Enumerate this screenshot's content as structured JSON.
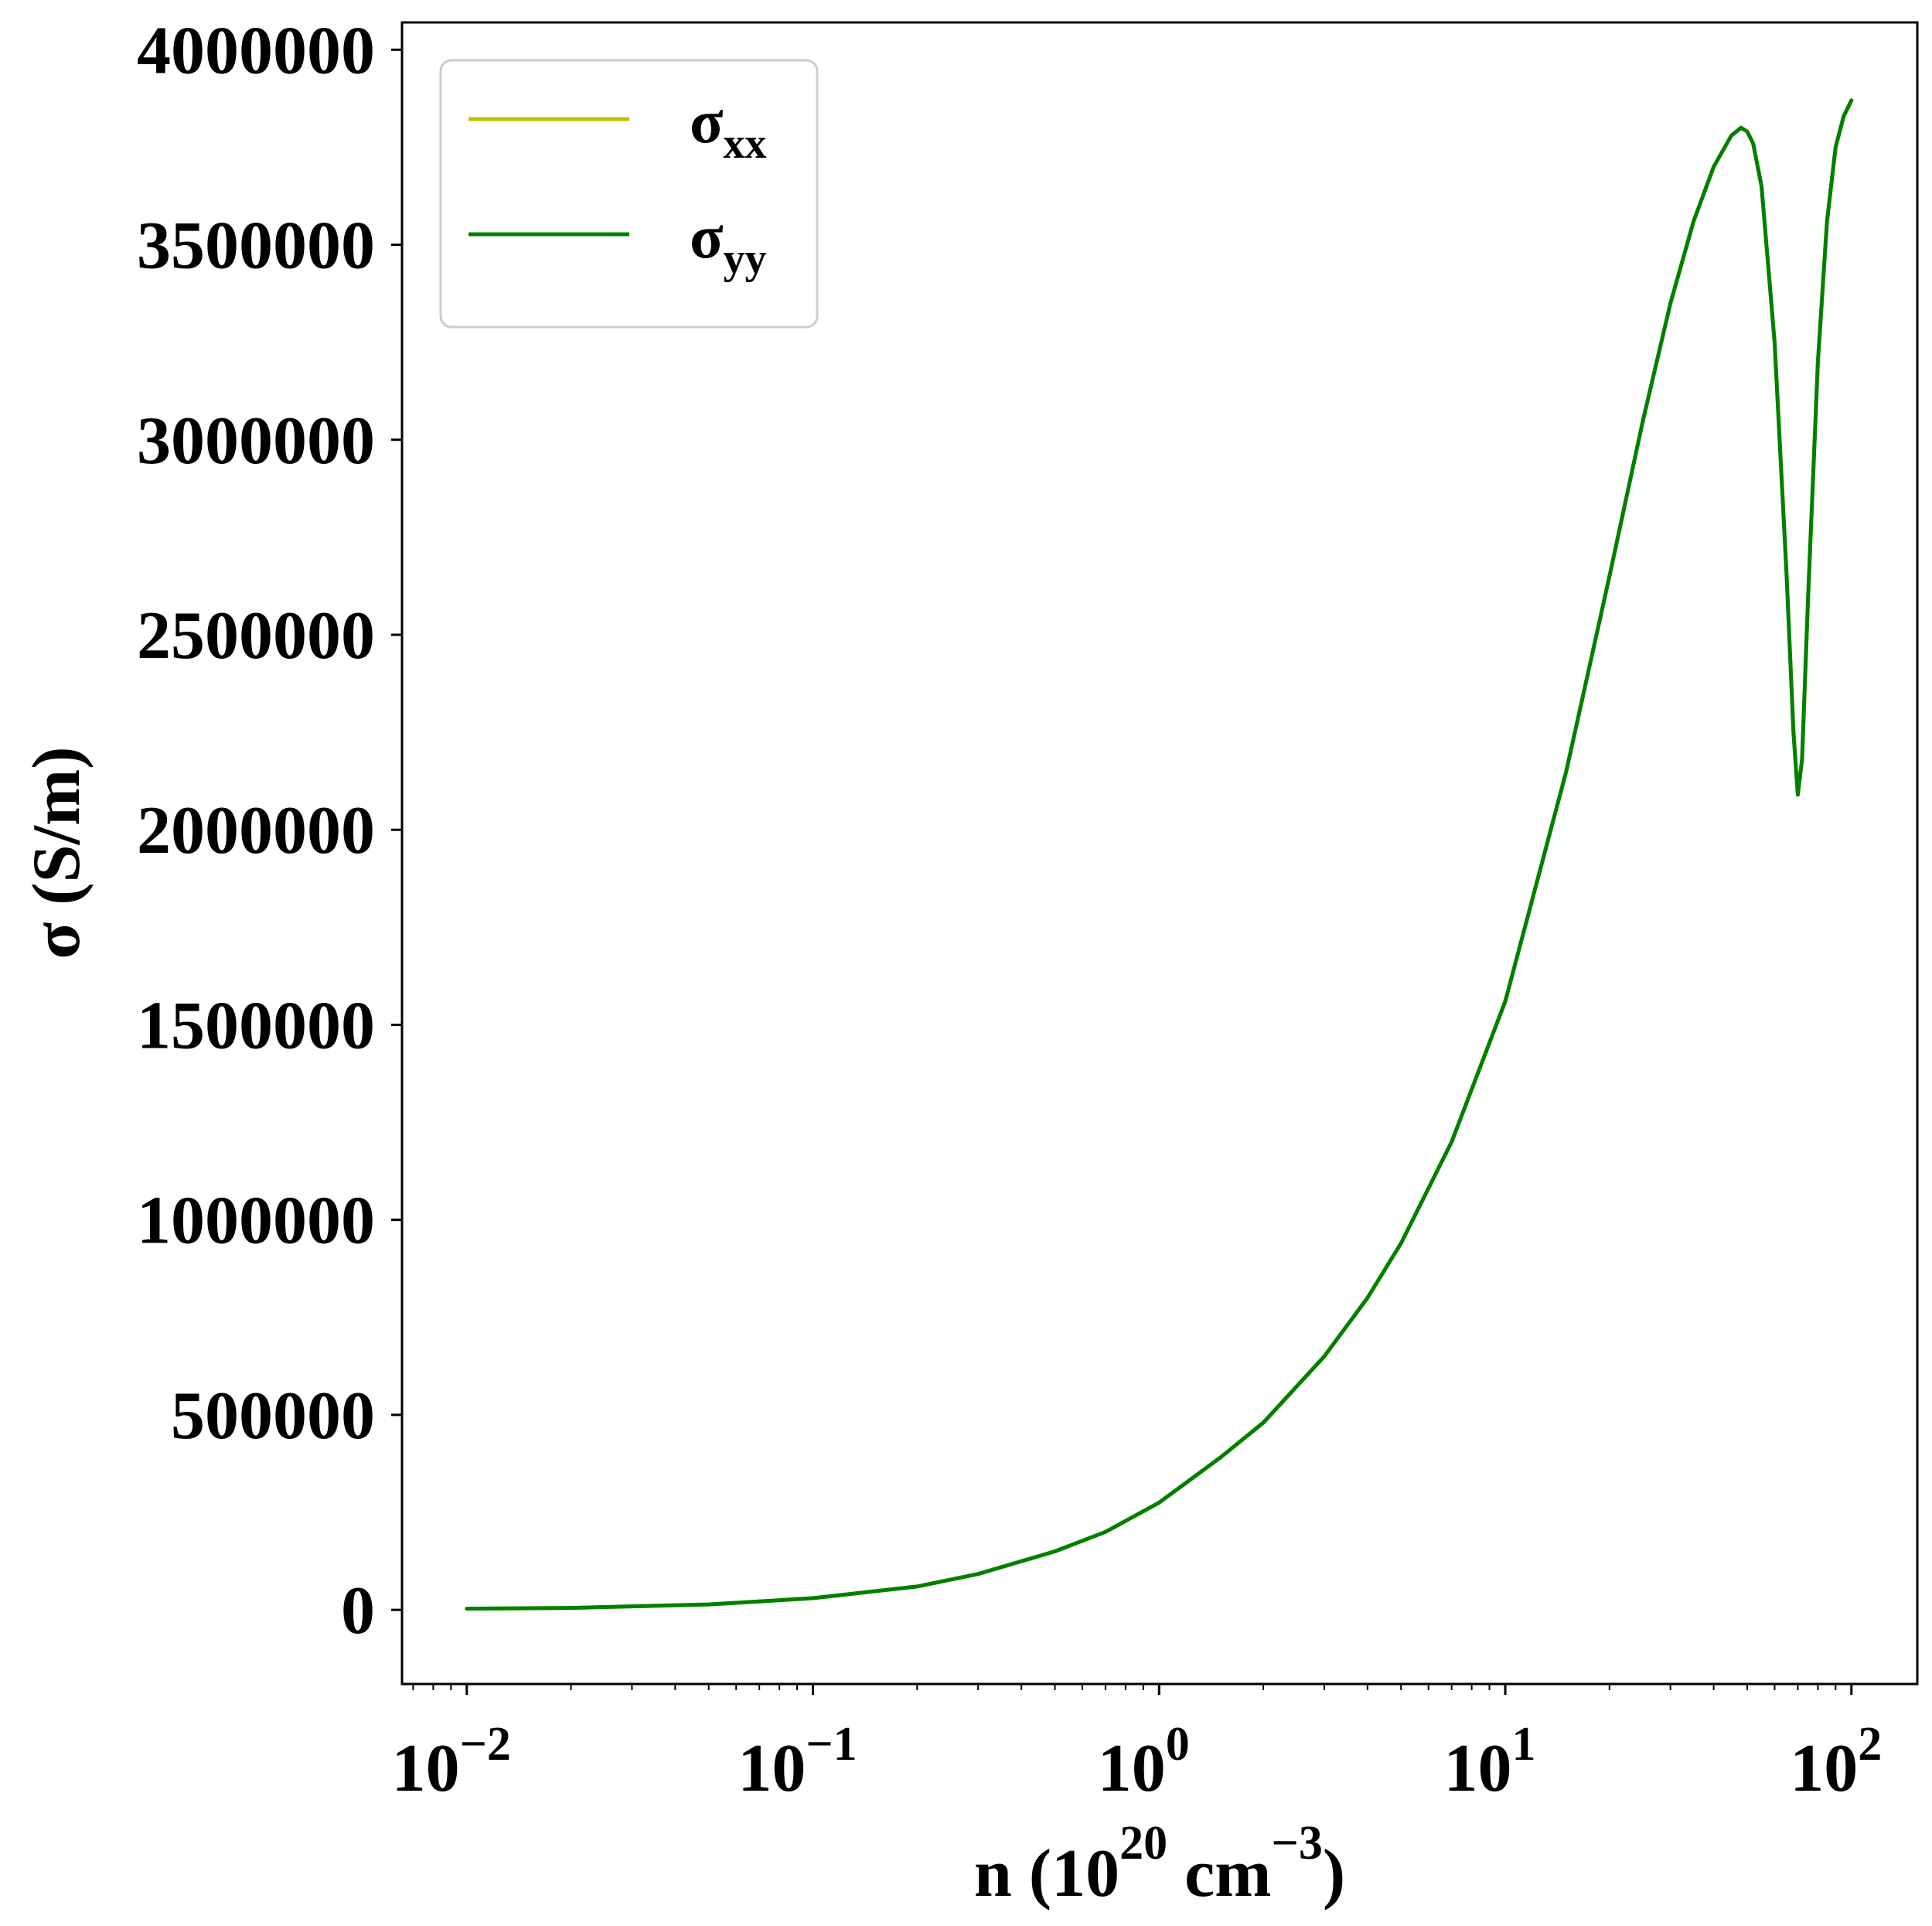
{
  "chart_data": {
    "type": "line",
    "xscale": "log",
    "xlabel": {
      "base": "n (10",
      "sup1": "20",
      "mid": " cm",
      "sup2": "−3",
      "end": ")"
    },
    "ylabel": "σ (S/m)",
    "xlim": [
      0.0065,
      155
    ],
    "ylim": [
      -190000,
      4070000
    ],
    "x_ticks": [
      {
        "value": 0.01,
        "base": "10",
        "exp": "−2"
      },
      {
        "value": 0.1,
        "base": "10",
        "exp": "−1"
      },
      {
        "value": 1,
        "base": "10",
        "exp": "0"
      },
      {
        "value": 10,
        "base": "10",
        "exp": "1"
      },
      {
        "value": 100,
        "base": "10",
        "exp": "2"
      }
    ],
    "y_ticks": [
      {
        "value": 0,
        "label": "0"
      },
      {
        "value": 500000,
        "label": "500000"
      },
      {
        "value": 1000000,
        "label": "1000000"
      },
      {
        "value": 1500000,
        "label": "1500000"
      },
      {
        "value": 2000000,
        "label": "2000000"
      },
      {
        "value": 2500000,
        "label": "2500000"
      },
      {
        "value": 3000000,
        "label": "3000000"
      },
      {
        "value": 3500000,
        "label": "3500000"
      },
      {
        "value": 4000000,
        "label": "4000000"
      }
    ],
    "legend": {
      "position": "top-left"
    },
    "grid": false,
    "series": [
      {
        "name": "σxx",
        "name_main": "σ",
        "name_sub": "xx",
        "color": "#bfbf00",
        "x": [
          0.01,
          0.02,
          0.05,
          0.1,
          0.2,
          0.3,
          0.5,
          0.7,
          1.0,
          1.5,
          2.0,
          3.0,
          4.0,
          5.0,
          7.0,
          10.0,
          15.0,
          20.0,
          25.0,
          30.0,
          35.0,
          40.0,
          45.0,
          48.0,
          50.0,
          52.0,
          55.0,
          60.0,
          65.0,
          68.0,
          70.0,
          72.0,
          75.0,
          80.0,
          85.0,
          90.0,
          95.0,
          100.0
        ],
        "y": [
          3000,
          5000,
          14000,
          30000,
          60000,
          92000,
          150000,
          200000,
          275000,
          390000,
          480000,
          650000,
          800000,
          940000,
          1200000,
          1560000,
          2150000,
          2650000,
          3050000,
          3350000,
          3560000,
          3700000,
          3780000,
          3800000,
          3790000,
          3760000,
          3650000,
          3250000,
          2650000,
          2250000,
          2090000,
          2180000,
          2600000,
          3200000,
          3560000,
          3750000,
          3830000,
          3870000
        ]
      },
      {
        "name": "σyy",
        "name_main": "σ",
        "name_sub": "yy",
        "color": "#008000",
        "x": [
          0.01,
          0.02,
          0.05,
          0.1,
          0.2,
          0.3,
          0.5,
          0.7,
          1.0,
          1.5,
          2.0,
          3.0,
          4.0,
          5.0,
          7.0,
          10.0,
          15.0,
          20.0,
          25.0,
          30.0,
          35.0,
          40.0,
          45.0,
          48.0,
          50.0,
          52.0,
          55.0,
          60.0,
          65.0,
          68.0,
          70.0,
          72.0,
          75.0,
          80.0,
          85.0,
          90.0,
          95.0,
          100.0
        ],
        "y": [
          3000,
          5000,
          14000,
          30000,
          60000,
          92000,
          150000,
          200000,
          275000,
          390000,
          480000,
          650000,
          800000,
          940000,
          1200000,
          1560000,
          2150000,
          2650000,
          3050000,
          3350000,
          3560000,
          3700000,
          3780000,
          3800000,
          3790000,
          3760000,
          3650000,
          3250000,
          2650000,
          2250000,
          2090000,
          2180000,
          2600000,
          3200000,
          3560000,
          3750000,
          3830000,
          3870000
        ]
      }
    ]
  }
}
